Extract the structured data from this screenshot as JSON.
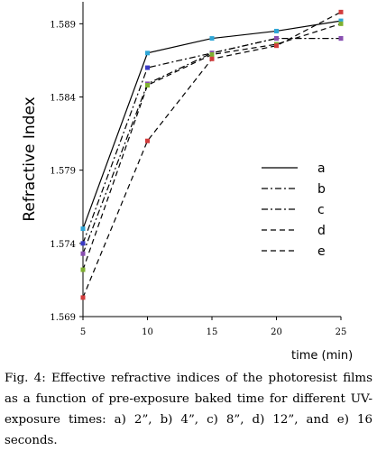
{
  "caption": "Fig. 4: Effective refractive indices of the photoresist films as a function of pre-exposure baked time for different UV-exposure times: a) 2”, b) 4”, c) 8”, d) 12”, and e) 16 seconds.",
  "chart_data": {
    "type": "line",
    "title": "",
    "xlabel": "time  (min)",
    "ylabel": "Refractive Index",
    "x": [
      5,
      10,
      15,
      20,
      25
    ],
    "xticks": [
      "5",
      "10",
      "15",
      "20",
      "25"
    ],
    "yticks": [
      "1.569",
      "1.574",
      "1.579",
      "1.584",
      "1.589"
    ],
    "ytick_values": [
      1.569,
      1.574,
      1.579,
      1.584,
      1.589
    ],
    "xlim": [
      5,
      25
    ],
    "ylim": [
      1.569,
      1.5905
    ],
    "grid": false,
    "legend_position": "center-right",
    "series": [
      {
        "name": "a",
        "dash": "solid",
        "marker_color": "#2fa6d6",
        "values": [
          1.575,
          1.587,
          1.588,
          1.5885,
          1.5892
        ]
      },
      {
        "name": "b",
        "dash": "dashdot",
        "marker_color": "#3b3bc4",
        "values": [
          1.574,
          1.586,
          1.587,
          1.588,
          1.588
        ]
      },
      {
        "name": "c",
        "dash": "dashdot",
        "marker_color": "#8a4fb0",
        "values": [
          1.5733,
          1.5849,
          1.587,
          1.588,
          1.588
        ]
      },
      {
        "name": "d",
        "dash": "dashed",
        "marker_color": "#7fb030",
        "values": [
          1.5722,
          1.5848,
          1.5869,
          1.5876,
          1.589
        ]
      },
      {
        "name": "e",
        "dash": "dashed",
        "marker_color": "#d23c3c",
        "values": [
          1.5703,
          1.581,
          1.5866,
          1.5875,
          1.5898
        ]
      }
    ]
  }
}
